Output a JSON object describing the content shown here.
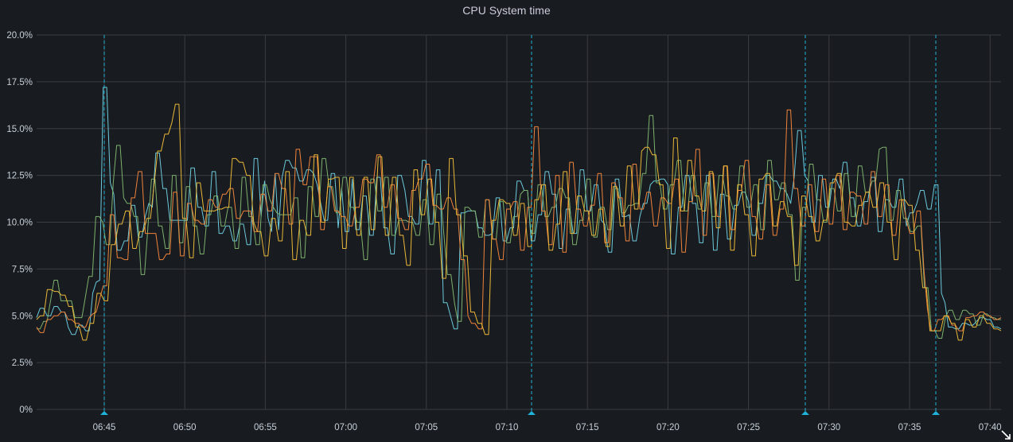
{
  "panel": {
    "title": "CPU System time",
    "colors": {
      "background": "#181b1f",
      "grid": "#3a3d42",
      "axis_text": "#c7d0d9",
      "annotation": "#1fb3d9"
    },
    "resize_icon": "resize-corner-icon"
  },
  "chart_data": {
    "type": "line",
    "title": "CPU System time",
    "xlabel": "",
    "ylabel": "",
    "ylim": [
      0,
      20
    ],
    "y_unit": "%",
    "yticks": [
      "0%",
      "2.5%",
      "5.0%",
      "7.5%",
      "10.0%",
      "12.5%",
      "15.0%",
      "17.5%",
      "20.0%"
    ],
    "xticks": [
      "06:45",
      "06:50",
      "06:55",
      "07:00",
      "07:05",
      "07:10",
      "07:15",
      "07:20",
      "07:25",
      "07:30",
      "07:35",
      "07:40"
    ],
    "x_range": [
      "06:40:45",
      "07:40:55"
    ],
    "grid": true,
    "legend": "none",
    "annotations": [
      "06:45",
      "07:11:35",
      "07:28:35",
      "07:36:40"
    ],
    "series": [
      {
        "name": "series-cyan",
        "color": "#6ccadc",
        "values": [
          4.9,
          5.4,
          5.4,
          5.0,
          5.0,
          5.5,
          5.5,
          5.2,
          5.2,
          4.4,
          4.0,
          4.0,
          4.5,
          4.5,
          4.2,
          4.2,
          6.2,
          6.8,
          6.9,
          17.2,
          17.2,
          12.1,
          11.5,
          8.5,
          8.5,
          9.0,
          9.0,
          10.9,
          10.9,
          9.2,
          9.2,
          10.3,
          11.0,
          10.8,
          13.7,
          13.7,
          11.8,
          11.8,
          10.1,
          10.1,
          10.1,
          10.1,
          10.1,
          10.1,
          12.9,
          12.9,
          10.8,
          10.8,
          9.8,
          9.8,
          12.7,
          12.7,
          9.4,
          9.4,
          9.8,
          9.8,
          9.0,
          9.0,
          9.9,
          9.9,
          8.8,
          8.8,
          13.4,
          13.4,
          10.3,
          12.2,
          10.2,
          9.5,
          12.6,
          9.6,
          12.4,
          13.3,
          13.3,
          12.9,
          12.9,
          12.2,
          12.2,
          12.8,
          12.8,
          12.6,
          12.0,
          11.0,
          10.1,
          10.1,
          12.6,
          12.6,
          9.7,
          11.8,
          9.5,
          9.5,
          12.3,
          9.6,
          9.6,
          11.4,
          11.4,
          9.3,
          9.3,
          12.4,
          12.4,
          9.7,
          9.7,
          8.3,
          8.3,
          12.5,
          12.5,
          11.7,
          10.3,
          10.3,
          9.9,
          9.9,
          13.3,
          13.3,
          9.9,
          9.9,
          12.8,
          12.8,
          5.7,
          5.7,
          5.0,
          4.3,
          4.3,
          10.5,
          10.5,
          10.6,
          10.6,
          10.6,
          9.7,
          9.7,
          9.3,
          9.3,
          9.4,
          11.3,
          11.3,
          9.0,
          9.0,
          9.7,
          9.7,
          12.2,
          12.2,
          11.7,
          11.7,
          9.0,
          9.0,
          10.4,
          10.4,
          12.7,
          12.7,
          11.5,
          11.5,
          8.6,
          8.6,
          10.7,
          10.7,
          9.4,
          9.4,
          12.8,
          12.8,
          10.6,
          10.6,
          12.0,
          12.0,
          10.1,
          9.9,
          8.4,
          8.4,
          12.3,
          12.3,
          10.3,
          10.3,
          10.4,
          9.0,
          9.0,
          10.3,
          11.0,
          11.0,
          12.0,
          12.2,
          12.2,
          12.3,
          12.3,
          12.0,
          8.3,
          8.3,
          10.8,
          10.8,
          12.5,
          12.5,
          11.0,
          11.0,
          8.9,
          8.9,
          12.5,
          12.5,
          8.5,
          8.5,
          11.5,
          11.5,
          9.1,
          9.1,
          10.9,
          10.9,
          11.6,
          11.6,
          11.1,
          9.3,
          9.3,
          11.0,
          11.0,
          12.5,
          12.5,
          12.2,
          12.2,
          11.8,
          11.8,
          11.5,
          11.0,
          12.4,
          14.9,
          14.9,
          12.5,
          12.2,
          10.0,
          10.0,
          12.5,
          12.5,
          10.8,
          10.8,
          12.3,
          12.3,
          11.8,
          13.2,
          13.2,
          11.3,
          11.3,
          9.8,
          9.8,
          11.1,
          11.1,
          12.4,
          12.4,
          9.5,
          9.5,
          11.2,
          11.2,
          10.8,
          10.8,
          12.3,
          12.3,
          9.8,
          10.5,
          10.5,
          11.0,
          11.7,
          11.7,
          10.7,
          10.7,
          12.0,
          12.0,
          6.2,
          5.7,
          4.4,
          4.4,
          4.3,
          4.3,
          4.6,
          4.6,
          4.5,
          4.5,
          4.7,
          4.9,
          4.9,
          4.8,
          4.8,
          4.4,
          4.4,
          4.3
        ]
      },
      {
        "name": "series-green",
        "color": "#7eb26d",
        "values": [
          4.3,
          4.3,
          4.7,
          4.7,
          5.8,
          6.9,
          6.9,
          5.8,
          5.8,
          5.8,
          5.8,
          4.9,
          4.9,
          4.9,
          6.0,
          7.1,
          7.1,
          10.3,
          10.3,
          10.0,
          8.8,
          8.8,
          12.1,
          14.1,
          14.1,
          11.3,
          11.0,
          11.0,
          10.3,
          10.3,
          7.2,
          7.2,
          9.8,
          12.3,
          12.3,
          9.8,
          9.8,
          8.6,
          8.6,
          12.5,
          12.5,
          8.9,
          8.9,
          11.9,
          11.9,
          9.8,
          9.8,
          8.3,
          8.3,
          10.4,
          10.4,
          11.4,
          11.4,
          9.8,
          9.8,
          10.8,
          10.8,
          8.6,
          8.6,
          12.4,
          12.4,
          10.3,
          10.3,
          8.8,
          8.8,
          12.0,
          12.0,
          11.2,
          10.8,
          10.5,
          10.4,
          10.4,
          10.4,
          10.4,
          11.3,
          11.3,
          8.1,
          8.1,
          11.9,
          11.9,
          10.3,
          10.3,
          13.4,
          13.4,
          11.9,
          11.9,
          10.5,
          10.5,
          12.4,
          12.4,
          10.8,
          10.8,
          10.0,
          10.0,
          8.0,
          8.0,
          12.3,
          12.3,
          10.6,
          10.6,
          12.4,
          12.4,
          9.3,
          9.3,
          10.1,
          10.1,
          10.1,
          10.0,
          10.0,
          9.3,
          9.3,
          11.2,
          11.2,
          8.8,
          8.8,
          11.5,
          11.5,
          9.3,
          7.2,
          7.2,
          5.7,
          4.7,
          4.7,
          10.8,
          10.8,
          10.6,
          10.6,
          9.2,
          9.2,
          11.2,
          11.2,
          9.1,
          9.1,
          11.1,
          11.1,
          8.9,
          8.9,
          10.3,
          10.3,
          11.5,
          11.7,
          11.7,
          9.4,
          9.4,
          12.0,
          12.0,
          10.3,
          10.3,
          10.8,
          10.8,
          11.8,
          11.8,
          11.3,
          11.3,
          8.8,
          8.8,
          10.1,
          10.1,
          12.3,
          12.3,
          9.2,
          9.2,
          10.8,
          10.8,
          9.6,
          9.6,
          11.8,
          11.8,
          10.5,
          10.5,
          10.9,
          10.9,
          11.0,
          11.0,
          12.6,
          12.6,
          15.7,
          15.7,
          12.1,
          12.1,
          10.7,
          10.7,
          12.0,
          12.0,
          13.3,
          13.3,
          10.6,
          10.6,
          12.5,
          12.5,
          10.7,
          10.7,
          12.1,
          12.1,
          10.3,
          10.3,
          12.5,
          12.5,
          11.4,
          11.4,
          10.7,
          10.7,
          13.0,
          13.0,
          10.8,
          10.8,
          12.0,
          12.0,
          9.6,
          9.6,
          13.3,
          13.3,
          11.2,
          11.2,
          12.1,
          12.1,
          10.4,
          10.4,
          6.9,
          6.9,
          10.8,
          10.8,
          13.1,
          13.1,
          11.2,
          11.2,
          10.0,
          10.0,
          11.8,
          11.8,
          10.6,
          10.6,
          12.6,
          12.6,
          10.3,
          10.3,
          13.0,
          13.0,
          11.6,
          11.6,
          12.2,
          12.2,
          13.9,
          14.0,
          14.0,
          10.1,
          10.1,
          11.7,
          11.7,
          10.2,
          10.2,
          9.5,
          9.5,
          9.8,
          9.8,
          6.5,
          6.5,
          4.2,
          4.2,
          3.8,
          3.8,
          4.9,
          5.3,
          5.3,
          4.8,
          4.8,
          5.3,
          5.3,
          5.1,
          5.1,
          4.5,
          4.5,
          5.1,
          5.1,
          4.9,
          4.9,
          4.8,
          4.8
        ]
      },
      {
        "name": "series-orange",
        "color": "#ef843c",
        "values": [
          4.4,
          4.1,
          4.1,
          4.8,
          4.8,
          5.0,
          5.0,
          5.2,
          5.2,
          4.8,
          4.8,
          4.6,
          4.6,
          4.4,
          4.4,
          4.9,
          5.1,
          5.2,
          5.9,
          6.6,
          6.6,
          10.4,
          10.4,
          8.1,
          8.1,
          8.0,
          8.0,
          11.3,
          11.3,
          12.7,
          12.7,
          9.4,
          9.4,
          9.4,
          9.4,
          8.0,
          8.0,
          8.3,
          8.3,
          11.6,
          11.6,
          8.2,
          8.2,
          11.0,
          11.0,
          10.1,
          10.1,
          9.9,
          9.9,
          11.2,
          11.2,
          10.8,
          10.8,
          11.5,
          11.5,
          11.8,
          11.8,
          10.2,
          10.2,
          10.6,
          10.6,
          10.6,
          9.5,
          9.5,
          11.5,
          11.5,
          10.6,
          10.6,
          12.6,
          12.6,
          11.8,
          11.8,
          9.9,
          9.9,
          13.9,
          13.9,
          12.0,
          12.0,
          13.5,
          13.5,
          13.5,
          9.6,
          9.6,
          11.9,
          11.9,
          10.6,
          10.6,
          10.3,
          10.3,
          9.8,
          9.8,
          10.8,
          10.8,
          12.3,
          12.3,
          12.1,
          12.1,
          13.6,
          13.6,
          10.8,
          10.8,
          12.0,
          12.0,
          10.2,
          10.2,
          9.6,
          9.6,
          11.7,
          11.7,
          12.3,
          12.3,
          13.1,
          13.1,
          10.9,
          10.9,
          10.7,
          10.7,
          11.3,
          11.3,
          10.7,
          10.7,
          8.0,
          8.0,
          5.0,
          4.6,
          4.6,
          4.3,
          4.3,
          11.2,
          11.2,
          9.1,
          9.1,
          8.0,
          8.0,
          10.7,
          10.7,
          11.1,
          11.1,
          8.5,
          8.5,
          10.8,
          10.8,
          15.1,
          15.1,
          10.6,
          10.6,
          8.8,
          8.8,
          12.5,
          12.5,
          8.4,
          8.4,
          13.2,
          13.2,
          10.7,
          10.7,
          9.8,
          9.8,
          10.9,
          10.9,
          12.6,
          12.6,
          8.9,
          8.9,
          12.1,
          12.1,
          11.3,
          11.3,
          9.0,
          9.0,
          13.1,
          13.1,
          10.7,
          10.7,
          11.6,
          11.6,
          9.8,
          9.8,
          11.3,
          11.3,
          11.0,
          11.0,
          12.3,
          12.3,
          8.4,
          8.4,
          11.1,
          11.1,
          13.9,
          13.9,
          9.3,
          9.3,
          12.6,
          12.6,
          10.3,
          10.3,
          13.0,
          13.0,
          9.6,
          9.6,
          11.7,
          11.7,
          13.3,
          13.3,
          10.3,
          10.3,
          9.1,
          9.1,
          12.0,
          12.0,
          9.3,
          9.3,
          10.7,
          10.7,
          16.0,
          16.0,
          11.8,
          11.8,
          9.8,
          9.8,
          12.0,
          12.0,
          9.5,
          9.5,
          12.3,
          12.3,
          9.9,
          9.9,
          12.5,
          12.5,
          9.6,
          9.6,
          11.6,
          11.6,
          11.4,
          11.4,
          9.9,
          9.9,
          12.7,
          12.7,
          10.3,
          10.3,
          12.0,
          12.0,
          9.3,
          9.3,
          11.2,
          11.2,
          10.1,
          9.4,
          9.4,
          10.6,
          10.6,
          7.5,
          5.4,
          4.2,
          4.2,
          4.8,
          4.8,
          5.0,
          5.0,
          4.5,
          4.5,
          4.2,
          4.2,
          4.9,
          4.9,
          5.0,
          5.0,
          5.2,
          5.2,
          5.0,
          5.0,
          4.8,
          4.8,
          4.9
        ]
      },
      {
        "name": "series-yellow",
        "color": "#eab839",
        "values": [
          4.8,
          5.0,
          5.0,
          6.4,
          6.4,
          6.3,
          6.3,
          6.1,
          6.1,
          5.5,
          5.5,
          4.4,
          4.4,
          3.7,
          3.7,
          4.6,
          4.6,
          6.2,
          6.2,
          5.8,
          5.8,
          8.8,
          8.8,
          9.9,
          9.9,
          10.6,
          10.6,
          8.6,
          8.6,
          9.5,
          9.5,
          10.2,
          10.2,
          12.0,
          13.8,
          13.8,
          14.7,
          14.7,
          15.3,
          16.3,
          16.3,
          10.2,
          10.2,
          8.1,
          8.1,
          12.1,
          12.1,
          10.6,
          10.6,
          10.6,
          10.6,
          10.7,
          10.7,
          10.8,
          10.8,
          13.4,
          13.4,
          13.2,
          13.2,
          12.5,
          12.5,
          10.0,
          9.5,
          9.5,
          8.2,
          8.2,
          10.2,
          10.2,
          9.0,
          9.0,
          12.7,
          12.7,
          8.0,
          8.0,
          10.1,
          10.1,
          9.3,
          9.3,
          13.6,
          13.6,
          10.0,
          10.0,
          12.3,
          12.3,
          12.4,
          12.4,
          8.6,
          8.6,
          12.4,
          12.4,
          9.3,
          9.3,
          12.4,
          12.4,
          9.6,
          9.6,
          13.5,
          13.5,
          9.3,
          9.3,
          12.4,
          12.4,
          9.3,
          9.3,
          7.7,
          7.7,
          12.8,
          12.8,
          10.4,
          10.4,
          12.3,
          12.3,
          10.0,
          10.0,
          7.0,
          7.0,
          13.4,
          13.4,
          10.4,
          10.4,
          8.2,
          8.2,
          5.2,
          5.2,
          4.6,
          4.6,
          4.0,
          4.0,
          10.1,
          10.1,
          11.2,
          11.2,
          11.0,
          11.0,
          9.3,
          9.3,
          11.0,
          11.0,
          8.7,
          8.7,
          11.2,
          11.2,
          12.0,
          12.0,
          8.5,
          8.5,
          9.9,
          9.9,
          12.7,
          12.7,
          9.4,
          9.4,
          11.4,
          11.4,
          10.6,
          10.6,
          9.3,
          9.3,
          10.7,
          10.7,
          8.7,
          8.7,
          11.9,
          11.9,
          9.8,
          9.8,
          13.0,
          13.0,
          10.7,
          10.7,
          13.8,
          14.0,
          14.0,
          13.6,
          13.6,
          12.0,
          12.0,
          8.6,
          8.6,
          14.5,
          14.5,
          10.6,
          10.6,
          13.3,
          13.3,
          11.4,
          11.4,
          10.6,
          10.6,
          12.7,
          12.7,
          9.7,
          9.7,
          13.0,
          13.0,
          8.5,
          8.5,
          12.0,
          12.0,
          10.4,
          10.4,
          8.2,
          8.2,
          12.3,
          12.3,
          12.6,
          12.6,
          9.8,
          9.8,
          11.1,
          11.1,
          10.3,
          10.3,
          7.7,
          7.7,
          11.4,
          11.4,
          10.3,
          10.3,
          9.0,
          9.0,
          10.1,
          10.1,
          12.1,
          12.1,
          12.6,
          12.6,
          10.0,
          10.0,
          9.8,
          9.8,
          10.9,
          10.9,
          11.6,
          11.6,
          10.8,
          10.8,
          12.1,
          12.1,
          10.0,
          10.0,
          8.0,
          8.0,
          11.2,
          11.2,
          10.9,
          10.9,
          8.5,
          8.5,
          6.5,
          6.5,
          4.2,
          4.2,
          4.2,
          4.2,
          5.0,
          5.0,
          4.6,
          4.6,
          3.7,
          3.7,
          4.8,
          4.8,
          4.4,
          4.4,
          5.0,
          5.0,
          4.6,
          4.6,
          4.3,
          4.3,
          4.2
        ]
      }
    ]
  }
}
